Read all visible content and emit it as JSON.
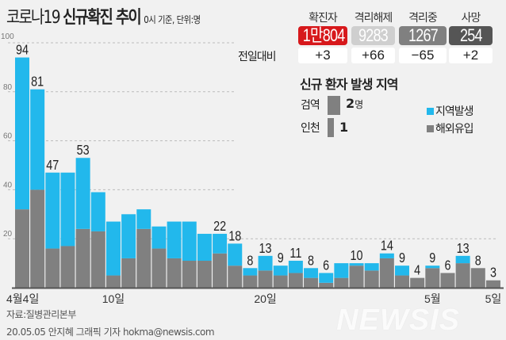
{
  "header": {
    "title_light": "코로나19",
    "title_bold": "신규확진 추이",
    "basis": "0시 기준, 단위:명"
  },
  "stats": [
    {
      "label": "확진자",
      "value": "1만804",
      "diff": "+3",
      "color": "#d7191c"
    },
    {
      "label": "격리해제",
      "value": "9283",
      "diff": "+66",
      "color": "#cfcfcf"
    },
    {
      "label": "격리중",
      "value": "1267",
      "diff": "−65",
      "color": "#808080"
    },
    {
      "label": "사망",
      "value": "254",
      "diff": "+2",
      "color": "#555555"
    }
  ],
  "diff_label": "전일대비",
  "region": {
    "title": "신규 환자 발생 지역",
    "items": [
      {
        "name": "검역",
        "value": "2",
        "unit": "명",
        "count": 2
      },
      {
        "name": "인천",
        "value": "1",
        "unit": "",
        "count": 1
      }
    ]
  },
  "chart_data": {
    "type": "bar",
    "stacked": true,
    "ylim": [
      0,
      100
    ],
    "yticks": [
      20,
      40,
      60,
      80,
      100
    ],
    "grid": true,
    "legend_placement": "right",
    "xtick_labels": [
      {
        "index": 0,
        "label": "4월4일"
      },
      {
        "index": 6,
        "label": "10일"
      },
      {
        "index": 16,
        "label": "20일"
      },
      {
        "index": 27,
        "label": "5월"
      },
      {
        "index": 31,
        "label": "5일"
      }
    ],
    "categories": [
      "4/4",
      "4/5",
      "4/6",
      "4/7",
      "4/8",
      "4/9",
      "4/10",
      "4/11",
      "4/12",
      "4/13",
      "4/14",
      "4/15",
      "4/16",
      "4/17",
      "4/18",
      "4/19",
      "4/20",
      "4/21",
      "4/22",
      "4/23",
      "4/24",
      "4/25",
      "4/26",
      "4/27",
      "4/28",
      "4/29",
      "4/30",
      "5/1",
      "5/2",
      "5/3",
      "5/4",
      "5/5"
    ],
    "totals": [
      94,
      81,
      47,
      47,
      53,
      39,
      27,
      30,
      32,
      25,
      27,
      27,
      22,
      22,
      18,
      8,
      13,
      9,
      11,
      8,
      6,
      10,
      10,
      10,
      14,
      9,
      4,
      9,
      6,
      13,
      8,
      3
    ],
    "data_labels": [
      94,
      81,
      47,
      null,
      53,
      null,
      null,
      null,
      null,
      null,
      null,
      null,
      null,
      22,
      18,
      8,
      13,
      9,
      11,
      8,
      6,
      null,
      10,
      null,
      14,
      9,
      4,
      9,
      6,
      13,
      8,
      3
    ],
    "series": [
      {
        "name": "해외유입",
        "color": "#808080",
        "values": [
          32,
          40,
          16,
          17,
          24,
          23,
          5,
          12,
          24,
          16,
          12,
          11,
          11,
          14,
          9,
          5,
          7,
          5,
          6,
          4,
          2,
          4,
          9,
          7,
          12,
          5,
          4,
          8,
          6,
          10,
          8,
          3
        ]
      },
      {
        "name": "지역발생",
        "color": "#22b8ec",
        "values": [
          62,
          41,
          31,
          30,
          29,
          16,
          22,
          18,
          8,
          9,
          15,
          16,
          11,
          8,
          9,
          3,
          6,
          4,
          5,
          4,
          4,
          6,
          1,
          3,
          2,
          4,
          0,
          1,
          0,
          3,
          0,
          0
        ]
      }
    ]
  },
  "footer": {
    "source": "자료:질병관리본부",
    "credit": "20.05.05 안지혜 그래픽 기자 hokma@newsis.com",
    "logo": "NEWSIS"
  }
}
